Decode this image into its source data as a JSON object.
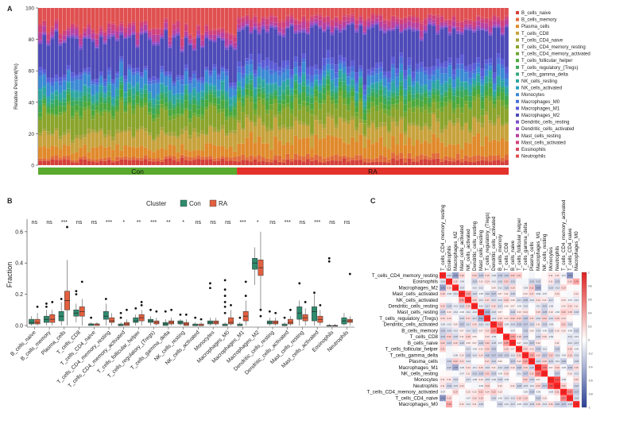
{
  "panels": {
    "a": "A",
    "b": "B",
    "c": "C"
  },
  "chart_data": [
    {
      "panel": "A",
      "type": "bar",
      "stacked": true,
      "ylabel": "Relative Percent(%)",
      "ylim": [
        0,
        100
      ],
      "yticks": [
        "0",
        "20",
        "40",
        "60",
        "80",
        "100"
      ],
      "groups": [
        {
          "name": "Con",
          "color": "#5aaa2e",
          "n_samples": 49
        },
        {
          "name": "RA",
          "color": "#e3322b",
          "n_samples": 67
        }
      ],
      "legend_position": "right",
      "legend": [
        {
          "name": "B_cells_naive",
          "color": "#d43f3a"
        },
        {
          "name": "B_cells_memory",
          "color": "#e06a3a"
        },
        {
          "name": "Plasma_cells",
          "color": "#e08a2c"
        },
        {
          "name": "T_cells_CD8",
          "color": "#c8a23c"
        },
        {
          "name": "T_cells_CD4_naive",
          "color": "#a6a23a"
        },
        {
          "name": "T_cells_CD4_memory_resting",
          "color": "#8aa42c"
        },
        {
          "name": "T_cells_CD4_memory_activated",
          "color": "#6ca832"
        },
        {
          "name": "T_cells_follicular_helper",
          "color": "#4aa83c"
        },
        {
          "name": "T_cells_regulatory_(Tregs)",
          "color": "#3aa85a"
        },
        {
          "name": "T_cells_gamma_delta",
          "color": "#32a87e"
        },
        {
          "name": "NK_cells_resting",
          "color": "#2ea5a0"
        },
        {
          "name": "NK_cells_activated",
          "color": "#2a9ebe"
        },
        {
          "name": "Monocytes",
          "color": "#3a8ad4"
        },
        {
          "name": "Macrophages_M0",
          "color": "#4a6fd8"
        },
        {
          "name": "Macrophages_M1",
          "color": "#5a5ad6"
        },
        {
          "name": "Macrophages_M2",
          "color": "#4e4ab8"
        },
        {
          "name": "Dendritic_cells_resting",
          "color": "#7a4ec8"
        },
        {
          "name": "Dendritic_cells_activated",
          "color": "#9a48c0"
        },
        {
          "name": "Mast_cells_resting",
          "color": "#b8409e"
        },
        {
          "name": "Mast_cells_activated",
          "color": "#d0407a"
        },
        {
          "name": "Eosinophils",
          "color": "#d84a64"
        },
        {
          "name": "Neutrophils",
          "color": "#e05050"
        }
      ],
      "mean_composition_percent": {
        "Con": [
          3,
          2,
          6,
          8,
          2,
          12,
          2,
          4,
          3,
          2,
          4,
          1,
          6,
          2,
          2,
          20,
          1,
          1,
          3,
          3,
          1,
          12
        ],
        "RA": [
          3,
          3,
          10,
          10,
          2,
          10,
          3,
          4,
          3,
          2,
          4,
          1,
          5,
          3,
          4,
          21,
          1,
          1,
          3,
          3,
          1,
          6
        ]
      }
    },
    {
      "panel": "B",
      "type": "box",
      "legend_title": "Cluster",
      "legend_position": "top",
      "ylabel": "Fraction",
      "ylim": [
        0,
        0.65
      ],
      "yticks": [
        "0.0",
        "0.2",
        "0.4",
        "0.6"
      ],
      "series": [
        {
          "name": "Con",
          "color": "#2e8b6e"
        },
        {
          "name": "RA",
          "color": "#e2603f"
        }
      ],
      "categories": [
        "B_cells_naive",
        "B_cells_memory",
        "Plasma_cells",
        "T_cells_CD8",
        "T_cells_CD4_naive",
        "T_cells_CD4_memory_resting",
        "T_cells_CD4_memory_activated",
        "T_cells_follicular_helper",
        "T_cells_regulatory_(Tregs)",
        "T_cells_gamma_delta",
        "NK_cells_resting",
        "NK_cells_activated",
        "Monocytes",
        "Macrophages_M0",
        "Macrophages_M1",
        "Macrophages_M2",
        "Dendritic_cells_resting",
        "Dendritic_cells_activated",
        "Mast_cells_resting",
        "Mast_cells_activated",
        "Eosinophils",
        "Neutrophils"
      ],
      "significance": [
        "ns",
        "ns",
        "***",
        "ns",
        "ns",
        "***",
        "*",
        "**",
        "***",
        "**",
        "*",
        "ns",
        "ns",
        "ns",
        "***",
        "*",
        "ns",
        "***",
        "ns",
        "***",
        "ns",
        "ns"
      ],
      "box_stats": {
        "Con": [
          [
            0.0,
            0.01,
            0.02,
            0.04,
            0.06
          ],
          [
            0.0,
            0.02,
            0.04,
            0.06,
            0.1
          ],
          [
            0.0,
            0.03,
            0.06,
            0.09,
            0.15
          ],
          [
            0.02,
            0.06,
            0.08,
            0.1,
            0.14
          ],
          [
            0.0,
            0.0,
            0.01,
            0.01,
            0.02
          ],
          [
            0.0,
            0.04,
            0.06,
            0.09,
            0.14
          ],
          [
            0.0,
            0.0,
            0.0,
            0.01,
            0.02
          ],
          [
            0.0,
            0.02,
            0.03,
            0.05,
            0.07
          ],
          [
            0.0,
            0.02,
            0.03,
            0.04,
            0.06
          ],
          [
            0.0,
            0.0,
            0.01,
            0.02,
            0.04
          ],
          [
            0.0,
            0.01,
            0.02,
            0.03,
            0.04
          ],
          [
            0.0,
            0.0,
            0.0,
            0.01,
            0.02
          ],
          [
            0.0,
            0.01,
            0.02,
            0.03,
            0.05
          ],
          [
            0.0,
            0.0,
            0.0,
            0.01,
            0.02
          ],
          [
            0.0,
            0.0,
            0.0,
            0.01,
            0.02
          ],
          [
            0.26,
            0.36,
            0.4,
            0.43,
            0.5
          ],
          [
            0.0,
            0.01,
            0.02,
            0.03,
            0.05
          ],
          [
            0.0,
            0.0,
            0.0,
            0.01,
            0.02
          ],
          [
            0.0,
            0.04,
            0.08,
            0.12,
            0.16
          ],
          [
            0.0,
            0.03,
            0.09,
            0.12,
            0.2
          ],
          [
            0.0,
            0.0,
            0.0,
            0.0,
            0.01
          ],
          [
            0.0,
            0.01,
            0.03,
            0.05,
            0.08
          ]
        ],
        "RA": [
          [
            0.0,
            0.01,
            0.02,
            0.04,
            0.08
          ],
          [
            0.0,
            0.02,
            0.04,
            0.07,
            0.1
          ],
          [
            0.0,
            0.1,
            0.16,
            0.22,
            0.42
          ],
          [
            0.0,
            0.06,
            0.09,
            0.12,
            0.17
          ],
          [
            0.0,
            0.0,
            0.01,
            0.01,
            0.02
          ],
          [
            0.0,
            0.02,
            0.03,
            0.05,
            0.08
          ],
          [
            0.0,
            0.0,
            0.01,
            0.02,
            0.04
          ],
          [
            0.0,
            0.03,
            0.05,
            0.07,
            0.1
          ],
          [
            0.0,
            0.01,
            0.02,
            0.03,
            0.05
          ],
          [
            0.0,
            0.01,
            0.02,
            0.03,
            0.05
          ],
          [
            0.0,
            0.0,
            0.01,
            0.02,
            0.04
          ],
          [
            0.0,
            0.0,
            0.0,
            0.01,
            0.02
          ],
          [
            0.0,
            0.01,
            0.02,
            0.03,
            0.05
          ],
          [
            0.0,
            0.01,
            0.02,
            0.05,
            0.1
          ],
          [
            0.0,
            0.03,
            0.06,
            0.09,
            0.16
          ],
          [
            0.1,
            0.32,
            0.37,
            0.42,
            0.6
          ],
          [
            0.0,
            0.01,
            0.02,
            0.03,
            0.05
          ],
          [
            0.0,
            0.01,
            0.02,
            0.04,
            0.06
          ],
          [
            0.0,
            0.03,
            0.05,
            0.07,
            0.11
          ],
          [
            0.0,
            0.02,
            0.04,
            0.06,
            0.1
          ],
          [
            0.0,
            0.0,
            0.0,
            0.0,
            0.01
          ],
          [
            0.0,
            0.02,
            0.03,
            0.04,
            0.06
          ]
        ]
      },
      "outliers": {
        "Con": [
          [],
          [
            0.14,
            0.12
          ],
          [
            0.17
          ],
          [
            0.22,
            0.2
          ],
          [
            0.05
          ],
          [
            0.17
          ],
          [
            0.05,
            0.08
          ],
          [
            0.11
          ],
          [
            0.1
          ],
          [
            0.09
          ],
          [
            0.07
          ],
          [
            0.05
          ],
          [
            0.27,
            0.24
          ],
          [
            0.29,
            0.23,
            0.19,
            0.15,
            0.12,
            0.08
          ],
          [
            0.05
          ],
          [],
          [
            0.09
          ],
          [
            0.05
          ],
          [
            0.27
          ],
          [
            0.21
          ],
          [
            0.43,
            0.41
          ],
          []
        ],
        "RA": [
          [
            0.12
          ],
          [
            0.15
          ],
          [
            0.63
          ],
          [
            0.28
          ],
          [],
          [],
          [
            0.1
          ],
          [
            0.15,
            0.13
          ],
          [
            0.09
          ],
          [
            0.1
          ],
          [
            0.07
          ],
          [
            0.04
          ],
          [],
          [
            0.13
          ],
          [
            0.28,
            0.19
          ],
          [
            0.1,
            0.06
          ],
          [
            0.08
          ],
          [
            0.1
          ],
          [
            0.15
          ],
          [
            0.13
          ],
          [],
          [
            0.33
          ]
        ]
      }
    },
    {
      "panel": "C",
      "type": "heatmap",
      "color_scale": [
        "#2b3f96",
        "#ffffff",
        "#e02020"
      ],
      "scale_ticks": [
        "1",
        "0.8",
        "0.6",
        "0.4",
        "0.2",
        "0",
        "-0.2",
        "-0.4",
        "-0.6",
        "-0.8",
        "-1"
      ],
      "rows": [
        "T_cells_CD4_memory_resting",
        "Eosinophils",
        "Macrophages_M2",
        "Mast_cells_activated",
        "NK_cells_activated",
        "Dendritic_cells_resting",
        "Mast_cells_resting",
        "T_cells_regulatory_(Tregs)",
        "Dendritic_cells_activated",
        "B_cells_memory",
        "T_cells_CD8",
        "B_cells_naive",
        "T_cells_follicular_helper",
        "T_cells_gamma_delta",
        "Plasma_cells",
        "Macrophages_M1",
        "NK_cells_resting",
        "Monocytes",
        "Neutrophils",
        "T_cells_CD4_memory_activated",
        "T_cells_CD4_naive",
        "Macrophages_M0"
      ],
      "cols": [
        "T_cells_CD4_memory_resting",
        "Eosinophils",
        "Macrophages_M2",
        "Mast_cells_activated",
        "NK_cells_activated",
        "Dendritic_cells_resting",
        "Mast_cells_resting",
        "T_cells_regulatory_(Tregs)",
        "Dendritic_cells_activated",
        "B_cells_memory",
        "T_cells_CD8",
        "B_cells_naive",
        "T_cells_follicular_helper",
        "T_cells_gamma_delta",
        "Plasma_cells",
        "Macrophages_M1",
        "NK_cells_resting",
        "Monocytes",
        "Neutrophils",
        "T_cells_CD4_memory_activated",
        "T_cells_CD4_naive",
        "Macrophages_M0"
      ]
    }
  ]
}
